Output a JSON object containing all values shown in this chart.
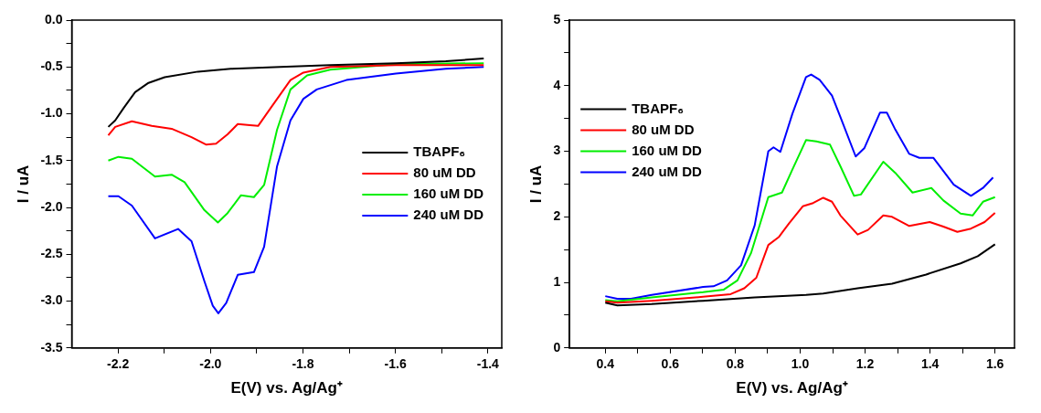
{
  "chart_data": [
    {
      "type": "line",
      "xlabel": "E(V) vs. Ag/Ag⁺",
      "ylabel": "I / uA",
      "xlim": [
        -2.3,
        -1.37
      ],
      "ylim": [
        -3.5,
        0
      ],
      "grid": false,
      "legend": "right",
      "xticks": [
        {
          "value": -2.2,
          "label": "-2.2"
        },
        {
          "value": -2.1,
          "label": null
        },
        {
          "value": -2,
          "label": "-2.0"
        },
        {
          "value": -1.9,
          "label": null
        },
        {
          "value": -1.8,
          "label": "-1.8"
        },
        {
          "value": -1.7,
          "label": null
        },
        {
          "value": -1.6,
          "label": "-1.6"
        },
        {
          "value": -1.5,
          "label": null
        },
        {
          "value": -1.4,
          "label": "-1.4"
        }
      ],
      "yticks": [
        {
          "value": -3.5,
          "label": "-3.5"
        },
        {
          "value": -3.25,
          "label": null
        },
        {
          "value": -3,
          "label": "-3.0"
        },
        {
          "value": -2.75,
          "label": null
        },
        {
          "value": -2.5,
          "label": "-2.5"
        },
        {
          "value": -2.25,
          "label": null
        },
        {
          "value": -2,
          "label": "-2.0"
        },
        {
          "value": -1.75,
          "label": null
        },
        {
          "value": -1.5,
          "label": "-1.5"
        },
        {
          "value": -1.25,
          "label": null
        },
        {
          "value": -1,
          "label": "-1.0"
        },
        {
          "value": -0.75,
          "label": null
        },
        {
          "value": -0.5,
          "label": "-0.5"
        },
        {
          "value": -0.25,
          "label": null
        },
        {
          "value": 0,
          "label": "0.0"
        }
      ],
      "series": [
        {
          "name": "TBAPF₆",
          "color": "#000000",
          "x": [
            -2.221,
            -2.206,
            -2.188,
            -2.163,
            -2.134,
            -2.099,
            -2.027,
            -1.956,
            -1.849,
            -1.741,
            -1.599,
            -1.491,
            -1.409
          ],
          "values": [
            -1.14,
            -1.07,
            -0.94,
            -0.77,
            -0.67,
            -0.61,
            -0.55,
            -0.52,
            -0.5,
            -0.48,
            -0.46,
            -0.44,
            -0.41
          ]
        },
        {
          "name": "80 uM DD",
          "color": "#ff0000",
          "x": [
            -2.221,
            -2.206,
            -2.17,
            -2.127,
            -2.084,
            -2.041,
            -2.009,
            -1.988,
            -1.963,
            -1.941,
            -1.92,
            -1.897,
            -1.87,
            -1.827,
            -1.799,
            -1.741,
            -1.599,
            -1.409
          ],
          "values": [
            -1.23,
            -1.14,
            -1.08,
            -1.13,
            -1.16,
            -1.25,
            -1.33,
            -1.32,
            -1.22,
            -1.11,
            -1.12,
            -1.13,
            -0.94,
            -0.64,
            -0.56,
            -0.5,
            -0.48,
            -0.48
          ]
        },
        {
          "name": "160 uM DD",
          "color": "#00ee00",
          "x": [
            -2.221,
            -2.199,
            -2.17,
            -2.12,
            -2.084,
            -2.056,
            -2.013,
            -1.984,
            -1.963,
            -1.934,
            -1.906,
            -1.884,
            -1.856,
            -1.827,
            -1.791,
            -1.741,
            -1.599,
            -1.409
          ],
          "values": [
            -1.5,
            -1.46,
            -1.48,
            -1.67,
            -1.65,
            -1.73,
            -2.03,
            -2.16,
            -2.06,
            -1.87,
            -1.89,
            -1.76,
            -1.17,
            -0.74,
            -0.59,
            -0.53,
            -0.47,
            -0.46
          ]
        },
        {
          "name": "240 uM DD",
          "color": "#0000ff",
          "x": [
            -2.221,
            -2.199,
            -2.17,
            -2.12,
            -2.07,
            -2.041,
            -2.013,
            -1.995,
            -1.983,
            -1.966,
            -1.941,
            -1.906,
            -1.884,
            -1.856,
            -1.827,
            -1.799,
            -1.77,
            -1.706,
            -1.599,
            -1.491,
            -1.409
          ],
          "values": [
            -1.88,
            -1.88,
            -1.98,
            -2.33,
            -2.23,
            -2.36,
            -2.79,
            -3.05,
            -3.13,
            -3.02,
            -2.72,
            -2.69,
            -2.42,
            -1.56,
            -1.07,
            -0.84,
            -0.74,
            -0.64,
            -0.57,
            -0.52,
            -0.5
          ]
        }
      ]
    },
    {
      "type": "line",
      "xlabel": "E(V) vs. Ag/Ag⁺",
      "ylabel": "I / uA",
      "xlim": [
        0.29,
        1.66
      ],
      "ylim": [
        0,
        5
      ],
      "grid": false,
      "legend": "top left",
      "xticks": [
        {
          "value": 0.4,
          "label": "0.4"
        },
        {
          "value": 0.5,
          "label": null
        },
        {
          "value": 0.6,
          "label": "0.6"
        },
        {
          "value": 0.7,
          "label": null
        },
        {
          "value": 0.8,
          "label": "0.8"
        },
        {
          "value": 0.9,
          "label": null
        },
        {
          "value": 1,
          "label": "1.0"
        },
        {
          "value": 1.1,
          "label": null
        },
        {
          "value": 1.2,
          "label": "1.2"
        },
        {
          "value": 1.3,
          "label": null
        },
        {
          "value": 1.4,
          "label": "1.4"
        },
        {
          "value": 1.5,
          "label": null
        },
        {
          "value": 1.6,
          "label": "1.6"
        }
      ],
      "yticks": [
        0,
        {
          "value": 0.5,
          "label": null
        },
        1,
        {
          "value": 1.5,
          "label": null
        },
        2,
        {
          "value": 2.5,
          "label": null
        },
        3,
        {
          "value": 3.5,
          "label": null
        },
        4,
        {
          "value": 4.5,
          "label": null
        },
        5
      ],
      "series": [
        {
          "name": "TBAPF₆",
          "color": "#000000",
          "x": [
            0.4,
            0.437,
            0.543,
            0.701,
            0.86,
            1.018,
            1.071,
            1.177,
            1.283,
            1.388,
            1.494,
            1.547,
            1.6
          ],
          "values": [
            0.69,
            0.65,
            0.67,
            0.72,
            0.77,
            0.81,
            0.83,
            0.91,
            0.98,
            1.12,
            1.29,
            1.4,
            1.58
          ]
        },
        {
          "name": "80 uM DD",
          "color": "#ff0000",
          "x": [
            0.4,
            0.437,
            0.543,
            0.701,
            0.786,
            0.828,
            0.865,
            0.902,
            0.934,
            0.966,
            1.008,
            1.04,
            1.071,
            1.098,
            1.124,
            1.177,
            1.209,
            1.256,
            1.283,
            1.336,
            1.399,
            1.441,
            1.484,
            1.526,
            1.568,
            1.6
          ],
          "values": [
            0.71,
            0.69,
            0.72,
            0.78,
            0.82,
            0.91,
            1.07,
            1.57,
            1.69,
            1.9,
            2.16,
            2.21,
            2.29,
            2.23,
            2.02,
            1.73,
            1.8,
            2.02,
            2,
            1.86,
            1.92,
            1.85,
            1.77,
            1.82,
            1.92,
            2.06
          ]
        },
        {
          "name": "160 uM DD",
          "color": "#00ee00",
          "x": [
            0.4,
            0.437,
            0.543,
            0.701,
            0.765,
            0.807,
            0.849,
            0.902,
            0.944,
            0.976,
            1.018,
            1.05,
            1.092,
            1.124,
            1.166,
            1.187,
            1.256,
            1.293,
            1.346,
            1.404,
            1.441,
            1.494,
            1.531,
            1.563,
            1.6
          ],
          "values": [
            0.73,
            0.71,
            0.77,
            0.85,
            0.89,
            1.03,
            1.45,
            2.3,
            2.37,
            2.72,
            3.17,
            3.15,
            3.1,
            2.77,
            2.32,
            2.34,
            2.84,
            2.67,
            2.37,
            2.44,
            2.25,
            2.05,
            2.02,
            2.23,
            2.3
          ]
        },
        {
          "name": "240 uM DD",
          "color": "#0000ff",
          "x": [
            0.4,
            0.437,
            0.479,
            0.543,
            0.701,
            0.733,
            0.775,
            0.818,
            0.86,
            0.902,
            0.918,
            0.939,
            0.976,
            1.018,
            1.034,
            1.06,
            1.098,
            1.124,
            1.171,
            1.198,
            1.246,
            1.267,
            1.293,
            1.336,
            1.367,
            1.41,
            1.473,
            1.526,
            1.563,
            1.594
          ],
          "values": [
            0.79,
            0.75,
            0.75,
            0.81,
            0.93,
            0.94,
            1.03,
            1.26,
            1.87,
            3,
            3.06,
            2.99,
            3.57,
            4.13,
            4.17,
            4.09,
            3.85,
            3.52,
            2.92,
            3.05,
            3.59,
            3.59,
            3.33,
            2.96,
            2.9,
            2.9,
            2.49,
            2.32,
            2.44,
            2.6
          ]
        }
      ]
    }
  ]
}
